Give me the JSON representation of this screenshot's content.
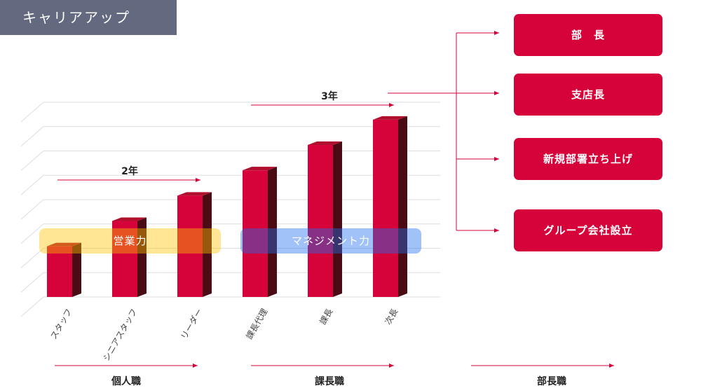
{
  "title": "キャリアアップ",
  "colors": {
    "bar_front": "#d5033a",
    "bar_side": "#4a0b14",
    "bar_top": "#b0102e",
    "accent": "#d5033a",
    "tag": "#636a7f"
  },
  "chart_data": {
    "type": "bar",
    "categories": [
      "スタッフ",
      "シニアスタッフ",
      "リーダー",
      "課長代理",
      "課長",
      "次長"
    ],
    "values": [
      2,
      3,
      4,
      5,
      6,
      7
    ],
    "ylim": [
      0,
      7.3
    ],
    "grid": true,
    "title": "",
    "xlabel": "",
    "ylabel": ""
  },
  "skill_bands": {
    "sales": "営業力",
    "management": "マネジメント力"
  },
  "durations": {
    "first": "2年",
    "second": "3年"
  },
  "destinations": [
    "部　長",
    "支店長",
    "新規部署立ち上げ",
    "グループ会社設立"
  ],
  "tiers": [
    "個人職",
    "課長職",
    "部長職"
  ]
}
